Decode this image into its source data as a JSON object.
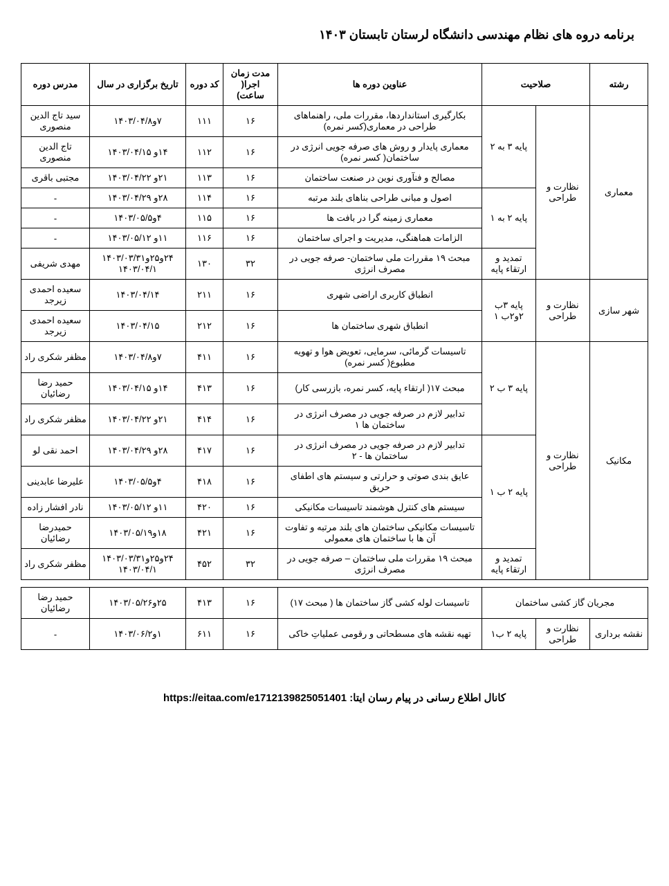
{
  "title": "برنامه دروه های نظام مهندسی دانشگاه لرستان  تابستان ۱۴۰۳",
  "headers": {
    "field": "رشته",
    "qualification": "صلاحیت",
    "course_title": "عناوین دوره ها",
    "duration": "مدت زمان اجرا( ساعت)",
    "code": "کد دوره",
    "date": "تاریخ برگزاری در سال",
    "instructor": "مدرس دوره"
  },
  "groups": [
    {
      "field": "معماری",
      "supervision": "نظارت و طراحی",
      "blocks": [
        {
          "qualification": "پایه ۳ به ۲",
          "rows": [
            {
              "title": "بکارگیری استانداردها، مقررات ملی، راهنماهای طراحی در معماری(کسر نمره)",
              "duration": "۱۶",
              "code": "۱۱۱",
              "date": "۷و۱۴۰۳/۰۴/۸",
              "instructor": "سید تاج الدین منصوری"
            },
            {
              "title": "معماری پایدار و روش های صرفه جویی انرژی در ساختمان( کسر نمره)",
              "duration": "۱۶",
              "code": "۱۱۲",
              "date": "۱۴و ۱۴۰۳/۰۴/۱۵",
              "instructor": "تاج الدین منصوری"
            },
            {
              "title": "مصالح و فنآوری نوین در صنعت ساختمان",
              "duration": "۱۶",
              "code": "۱۱۳",
              "date": "۲۱و ۱۴۰۳/۰۴/۲۲",
              "instructor": "مجتبی باقری"
            }
          ]
        },
        {
          "qualification": "پایه ۲ به ۱",
          "rows": [
            {
              "title": "اصول و مبانی طراحی بناهای بلند مرتبه",
              "duration": "۱۶",
              "code": "۱۱۴",
              "date": "۲۸و ۱۴۰۳/۰۴/۲۹",
              "instructor": "-"
            },
            {
              "title": "معماری زمینه گرا در بافت ها",
              "duration": "۱۶",
              "code": "۱۱۵",
              "date": "۴و۱۴۰۳/۰۵/۵",
              "instructor": "-"
            },
            {
              "title": "الزامات هماهنگی، مدیریت و اجرای ساختمان",
              "duration": "۱۶",
              "code": "۱۱۶",
              "date": "۱۱و ۱۴۰۳/۰۵/۱۲",
              "instructor": "-"
            }
          ]
        },
        {
          "qualification": "تمدید و ارتقاء پایه",
          "rows": [
            {
              "title": "مبحث ۱۹ مقررات ملی ساختمان- صرفه جویی در مصرف انرژی",
              "duration": "۳۲",
              "code": "۱۳۰",
              "date": "۲۴و۲۵و۱۴۰۳/۰۳/۳۱ ۱۴۰۳/۰۴/۱",
              "instructor": "مهدی شریفی"
            }
          ]
        }
      ]
    },
    {
      "field": "شهر سازی",
      "supervision": "نظارت و طراحی",
      "blocks": [
        {
          "qualification": "پایه ۳ب ۲و۲ب ۱",
          "rows": [
            {
              "title": "انطباق کاربری اراضی شهری",
              "duration": "۱۶",
              "code": "۲۱۱",
              "date": "۱۴۰۳/۰۴/۱۴",
              "instructor": "سعیده احمدی زیرجد"
            },
            {
              "title": "انطباق شهری ساختمان ها",
              "duration": "۱۶",
              "code": "۲۱۲",
              "date": "۱۴۰۳/۰۴/۱۵",
              "instructor": "سعیده احمدی زیرجد"
            }
          ]
        }
      ]
    },
    {
      "field": "مکانیک",
      "supervision": "نظارت و طراحی",
      "blocks": [
        {
          "qualification": "پایه ۳ ب ۲",
          "rows": [
            {
              "title": "تاسیسات گرمائی، سرمایی، تعویض هوا و تهویه مطبوع( کسر نمره)",
              "duration": "۱۶",
              "code": "۴۱۱",
              "date": "۷و۱۴۰۳/۰۴/۸",
              "instructor": "مظفر شکری راد"
            },
            {
              "title": "مبحث ۱۷( ارتقاء پایه، کسر نمره، بازرسی کار)",
              "duration": "۱۶",
              "code": "۴۱۳",
              "date": "۱۴و ۱۴۰۳/۰۴/۱۵",
              "instructor": "حمید رضا رضائیان"
            },
            {
              "title": "تدابیر لازم در صرفه جویی در مصرف انرژی در ساختمان ها ۱",
              "duration": "۱۶",
              "code": "۴۱۴",
              "date": "۲۱و ۱۴۰۳/۰۴/۲۲",
              "instructor": "مظفر شکری راد"
            }
          ]
        },
        {
          "qualification": "پایه ۲ ب ۱",
          "rows": [
            {
              "title": "تدابیر لازم در صرفه جویی در مصرف انرژی در ساختمان ها - ۲",
              "duration": "۱۶",
              "code": "۴۱۷",
              "date": "۲۸و ۱۴۰۳/۰۴/۲۹",
              "instructor": "احمد نقی لو"
            },
            {
              "title": "عایق بندی صوتی و حرارتی و سیستم های اطفای حریق",
              "duration": "۱۶",
              "code": "۴۱۸",
              "date": "۴و۱۴۰۳/۰۵/۵",
              "instructor": "علیرضا عابدینی"
            },
            {
              "title": "سیستم های کنترل هوشمند تاسیسات مکانیکی",
              "duration": "۱۶",
              "code": "۴۲۰",
              "date": "۱۱و ۱۴۰۳/۰۵/۱۲",
              "instructor": "نادر افشار زاده"
            },
            {
              "title": "تاسیسات مکانیکی ساختمان های بلند مرتبه و تفاوت آن ها با ساختمان های معمولی",
              "duration": "۱۶",
              "code": "۴۲۱",
              "date": "۱۸و۱۴۰۳/۰۵/۱۹",
              "instructor": "حمیدرضا رضائیان"
            }
          ]
        },
        {
          "qualification": "تمدید و ارتقاء پایه",
          "rows": [
            {
              "title": "مبحث ۱۹ مقررات ملی ساختمان – صرفه جویی در مصرف انرژی",
              "duration": "۳۲",
              "code": "۴۵۲",
              "date": "۲۴و۲۵و۱۴۰۳/۰۳/۳۱ ۱۴۰۳/۰۴/۱",
              "instructor": "مظفر شکری راد"
            }
          ]
        }
      ]
    }
  ],
  "extra_rows": [
    {
      "field": "مجریان گاز کشی ساختمان",
      "field_colspan": 3,
      "title": "تاسیسات لوله کشی گاز ساختمان ها ( مبحث ۱۷)",
      "duration": "۱۶",
      "code": "۴۱۳",
      "date": "۲۵و۱۴۰۳/۰۵/۲۶",
      "instructor": "حمید رضا رضائیان"
    },
    {
      "field": "نقشه برداری",
      "supervision": "نظارت و طراحی",
      "qualification": "پایه ۲ ب۱",
      "title": "تهیه نقشه های مسطحاتی و رقومی عملیاتِ خاکی",
      "duration": "۱۶",
      "code": "۶۱۱",
      "date": "۱و۱۴۰۳/۰۶/۲",
      "instructor": "-"
    }
  ],
  "footer": {
    "label": "کانال اطلاع رسانی در پیام رسان ایتا:",
    "url": "https://eitaa.com/e1712139825051401"
  }
}
